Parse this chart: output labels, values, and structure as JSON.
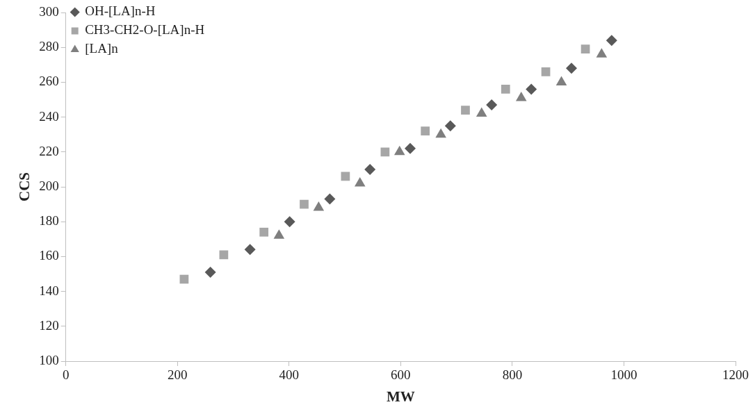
{
  "chart_data": {
    "type": "scatter",
    "xlabel": "MW",
    "ylabel": "CCS",
    "xlim": [
      0,
      1200
    ],
    "xticks": [
      0,
      200,
      400,
      600,
      800,
      1000,
      1200
    ],
    "ylim": [
      100,
      300
    ],
    "yticks": [
      100,
      120,
      140,
      160,
      180,
      200,
      220,
      240,
      260,
      280,
      300
    ],
    "grid": false,
    "legend": "top left",
    "series": [
      {
        "name": "OH-[LA]n-H",
        "color": "#595959",
        "marker": "diamond",
        "x": [
          259,
          330,
          401,
          473,
          545,
          617,
          689,
          763,
          834,
          906,
          978
        ],
        "values": [
          151,
          164,
          180,
          193,
          210,
          222,
          235,
          247,
          256,
          268,
          284
        ]
      },
      {
        "name": "CH3-CH2-O-[LA]n-H",
        "color": "#a6a6a6",
        "marker": "square",
        "x": [
          212,
          283,
          355,
          427,
          501,
          572,
          644,
          716,
          788,
          860,
          931
        ],
        "values": [
          147,
          161,
          174,
          190,
          206,
          220,
          232,
          244,
          256,
          266,
          279
        ]
      },
      {
        "name": "[LA]n",
        "color": "#7f7f7f",
        "marker": "triangle",
        "x": [
          382,
          453,
          527,
          598,
          672,
          745,
          816,
          888,
          960
        ],
        "values": [
          172,
          188,
          202,
          220,
          230,
          242,
          251,
          260,
          276
        ]
      }
    ]
  }
}
